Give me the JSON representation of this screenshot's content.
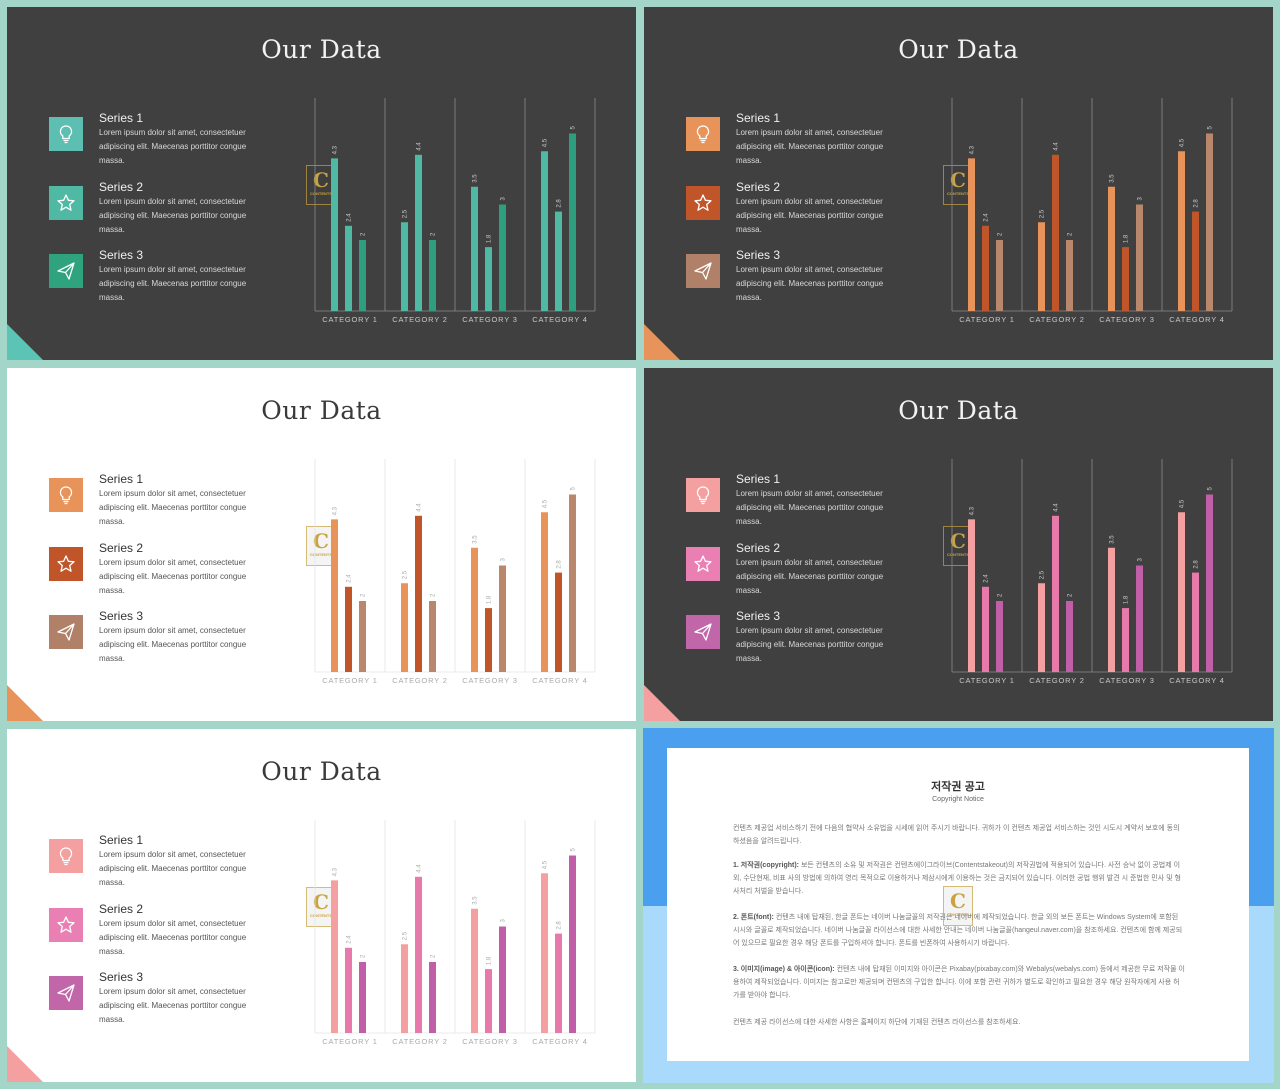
{
  "slides": [
    {
      "theme": "dark",
      "title": "Our Data",
      "colors": [
        "#4fb9a3",
        "#4fb9a3",
        "#2e9e7e"
      ],
      "icon_colors": [
        "#5cbfb1",
        "#4fb9a3",
        "#2fa37d"
      ],
      "corner_color": "#5cc4b4",
      "series": [
        {
          "name": "Series 1",
          "desc": "Lorem ipsum dolor sit amet, consectetuer adipiscing elit. Maecenas porttitor congue massa.",
          "icon": "lightbulb-icon"
        },
        {
          "name": "Series 2",
          "desc": "Lorem ipsum dolor sit amet, consectetuer adipiscing elit. Maecenas porttitor congue massa.",
          "icon": "star-icon"
        },
        {
          "name": "Series 3",
          "desc": "Lorem ipsum dolor sit amet, consectetuer adipiscing elit. Maecenas porttitor congue massa.",
          "icon": "paper-plane-icon"
        }
      ]
    },
    {
      "theme": "dark",
      "title": "Our Data",
      "colors": [
        "#e8935a",
        "#c0552a",
        "#b8876c"
      ],
      "icon_colors": [
        "#e8935a",
        "#c0552a",
        "#b08068"
      ],
      "corner_color": "#e8935a",
      "series": [
        {
          "name": "Series 1",
          "desc": "Lorem ipsum dolor sit amet, consectetuer adipiscing elit. Maecenas porttitor congue massa.",
          "icon": "lightbulb-icon"
        },
        {
          "name": "Series 2",
          "desc": "Lorem ipsum dolor sit amet, consectetuer adipiscing elit. Maecenas porttitor congue massa.",
          "icon": "star-icon"
        },
        {
          "name": "Series 3",
          "desc": "Lorem ipsum dolor sit amet, consectetuer adipiscing elit. Maecenas porttitor congue massa.",
          "icon": "paper-plane-icon"
        }
      ]
    },
    {
      "theme": "light",
      "title": "Our Data",
      "colors": [
        "#e8935a",
        "#c0552a",
        "#b8876c"
      ],
      "icon_colors": [
        "#e8935a",
        "#c0552a",
        "#b08068"
      ],
      "corner_color": "#e8935a",
      "series": [
        {
          "name": "Series 1",
          "desc": "Lorem ipsum dolor sit amet, consectetuer adipiscing elit. Maecenas porttitor congue massa.",
          "icon": "lightbulb-icon"
        },
        {
          "name": "Series 2",
          "desc": "Lorem ipsum dolor sit amet, consectetuer adipiscing elit. Maecenas porttitor congue massa.",
          "icon": "star-icon"
        },
        {
          "name": "Series 3",
          "desc": "Lorem ipsum dolor sit amet, consectetuer adipiscing elit. Maecenas porttitor congue massa.",
          "icon": "paper-plane-icon"
        }
      ]
    },
    {
      "theme": "dark",
      "title": "Our Data",
      "colors": [
        "#f5a0a0",
        "#e87aab",
        "#c05fa8"
      ],
      "icon_colors": [
        "#f5a0a0",
        "#ea7fb3",
        "#c266aa"
      ],
      "corner_color": "#f5a0a0",
      "series": [
        {
          "name": "Series 1",
          "desc": "Lorem ipsum dolor sit amet, consectetuer adipiscing elit. Maecenas porttitor congue massa.",
          "icon": "lightbulb-icon"
        },
        {
          "name": "Series 2",
          "desc": "Lorem ipsum dolor sit amet, consectetuer adipiscing elit. Maecenas porttitor congue massa.",
          "icon": "star-icon"
        },
        {
          "name": "Series 3",
          "desc": "Lorem ipsum dolor sit amet, consectetuer adipiscing elit. Maecenas porttitor congue massa.",
          "icon": "paper-plane-icon"
        }
      ]
    },
    {
      "theme": "light",
      "title": "Our Data",
      "colors": [
        "#f5a0a0",
        "#e87aab",
        "#c05fa8"
      ],
      "icon_colors": [
        "#f5a0a0",
        "#ea7fb3",
        "#c266aa"
      ],
      "corner_color": "#f5a0a0",
      "series": [
        {
          "name": "Series 1",
          "desc": "Lorem ipsum dolor sit amet, consectetuer adipiscing elit. Maecenas porttitor congue massa.",
          "icon": "lightbulb-icon"
        },
        {
          "name": "Series 2",
          "desc": "Lorem ipsum dolor sit amet, consectetuer adipiscing elit. Maecenas porttitor congue massa.",
          "icon": "star-icon"
        },
        {
          "name": "Series 3",
          "desc": "Lorem ipsum dolor sit amet, consectetuer adipiscing elit. Maecenas porttitor congue massa.",
          "icon": "paper-plane-icon"
        }
      ]
    }
  ],
  "chart_data": {
    "type": "bar",
    "categories": [
      "CATEGORY 1",
      "CATEGORY 2",
      "CATEGORY 3",
      "CATEGORY 4"
    ],
    "series": [
      {
        "name": "Series 1",
        "values": [
          4.3,
          2.5,
          3.5,
          4.5
        ]
      },
      {
        "name": "Series 2",
        "values": [
          2.4,
          4.4,
          1.8,
          2.8
        ]
      },
      {
        "name": "Series 3",
        "values": [
          2,
          2,
          3,
          5
        ]
      }
    ],
    "ylim": [
      0,
      6
    ],
    "grid": true
  },
  "watermark": {
    "letter": "C",
    "text": "CONTENTS"
  },
  "notice": {
    "title": "저작권 공고",
    "subtitle": "Copyright Notice",
    "paragraphs": [
      {
        "head": "",
        "text": "컨텐츠 제공업 서비스하기 전에 다음의 협약사 소유법을 시세에 읽어 주시기 바랍니다. 귀하가 이 컨텐츠 제공업 서비스하는 것인 시도시 계약서 보호에 동의하셨음을 알려드립니다."
      },
      {
        "head": "1. 저작권(copyright): ",
        "text": "보든 컨텐츠의 소유 및 저작권은 컨텐츠에이그라이브(Contentstakeout)의 저작권법에 적용되어 있습니다. 사전 승낙 없이 공법제 이외, 수단현재, 비표 사의 방법에 의하여 영리 목적으로 이용하거나 제삼시에게 이용하는 것은 금지되어 있습니다. 이러한 공법 행위 발견 시 준법한 민사 및 형사처리 처벌을 받습니다."
      },
      {
        "head": "2. 폰트(font): ",
        "text": "컨텐츠 내에 탑재된, 한글 폰트는 네이버 나눔글꼴의 저작권은 네이버에 제작되었습니다. 한글 외의 보든 폰트는 Windows System에 포함된 시시와 글꼴로 제작되었습니다. 네이버 나눔글꼴 라이선스에 대한 사세한 안내는 네이버 나눔글꼴(hangeul.naver.com)을 참조하세요. 컨텐츠에 함께 제공되어 있으므로 필요한 경우 해당 폰트를 구입하셔야 합니다. 폰트를 빈폰하여 사용하시기 바랍니다."
      },
      {
        "head": "3. 이미지(image) & 아이콘(icon): ",
        "text": "컨텐츠 내에 탑재된 이미지와 아이콘은 Pixabay(pixabay.com)와 Webalys(webalys.com) 등에서 제공한 무료 저작물 이용하여 제작되었습니다. 이미지는 참고로만 제공되며 컨텐츠의 구입한 합니다. 이에 포함 관련 귀하가 별도로 확인하고 필요한 경우 해당 원작자에게 사용 허가를 받아야 합니다."
      },
      {
        "head": "",
        "text": "컨텐츠 제공 라이선스에 대한 사세한 사항은 홈페이지 하단에 기재된 컨텐츠 라이선스를 참조하세요."
      }
    ]
  }
}
